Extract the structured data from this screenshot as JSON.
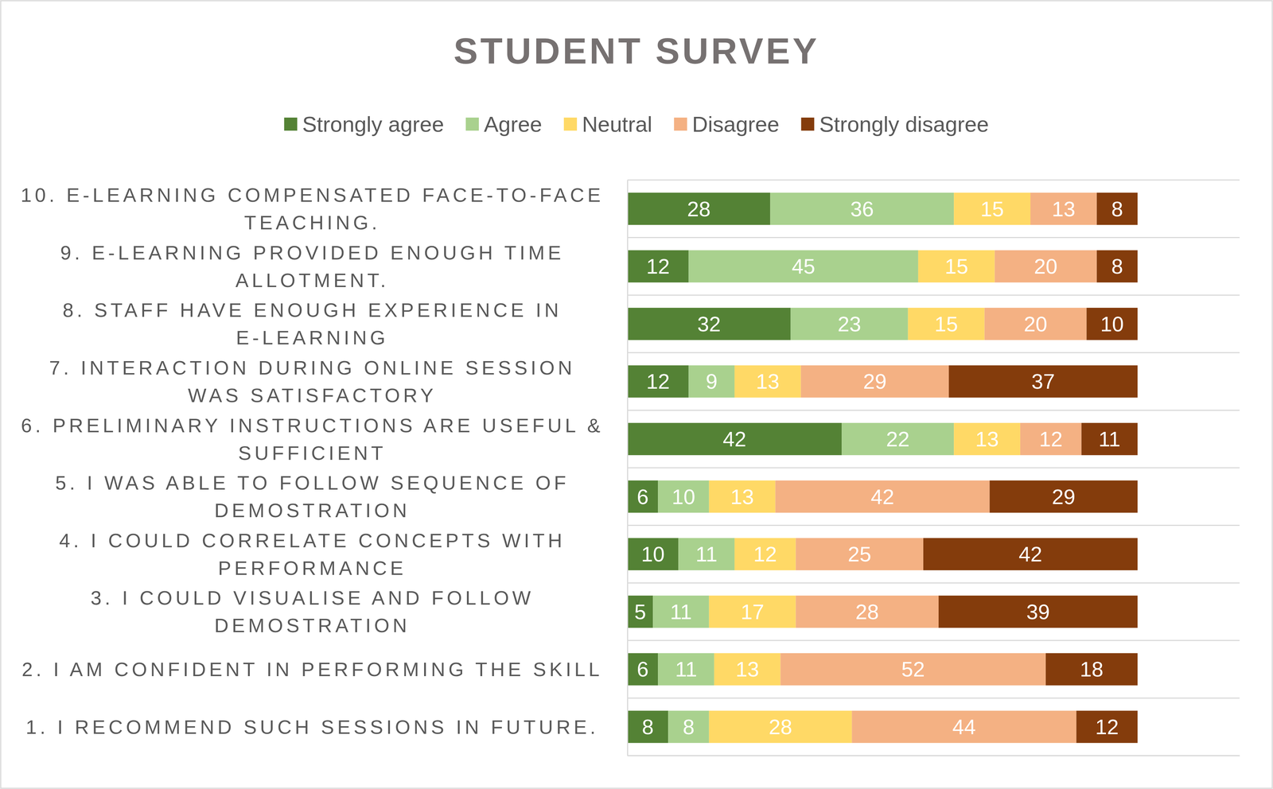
{
  "chart_data": {
    "type": "bar",
    "title": "STUDENT SURVEY",
    "orientation": "horizontal",
    "stacked": true,
    "data_labels": true,
    "grid": true,
    "legend": "top",
    "tick_labels": "y",
    "categories": [
      "10. E-LEARNING COMPENSATED FACE-TO-FACE TEACHING.",
      "9. E-LEARNING PROVIDED ENOUGH TIME ALLOTMENT.",
      "8. STAFF HAVE ENOUGH EXPERIENCE IN E-LEARNING",
      "7. INTERACTION DURING ONLINE SESSION WAS SATISFACTORY",
      "6. PRELIMINARY INSTRUCTIONS ARE USEFUL & SUFFICIENT",
      "5. I WAS ABLE TO FOLLOW SEQUENCE OF DEMOSTRATION",
      "4. I COULD CORRELATE CONCEPTS WITH PERFORMANCE",
      "3. I COULD VISUALISE AND FOLLOW DEMOSTRATION",
      "2. I AM CONFIDENT IN PERFORMING THE SKILL",
      "1. I RECOMMEND SUCH SESSIONS IN FUTURE."
    ],
    "xlim": [
      0,
      120
    ],
    "series": [
      {
        "name": "Strongly agree",
        "color": "#548235",
        "values": [
          28,
          12,
          32,
          12,
          42,
          6,
          10,
          5,
          6,
          8
        ]
      },
      {
        "name": "Agree",
        "color": "#A9D18E",
        "values": [
          36,
          45,
          23,
          9,
          22,
          10,
          11,
          11,
          11,
          8
        ]
      },
      {
        "name": "Neutral",
        "color": "#FFD966",
        "values": [
          15,
          15,
          15,
          13,
          13,
          13,
          12,
          17,
          13,
          28
        ]
      },
      {
        "name": "Disagree",
        "color": "#F4B183",
        "values": [
          13,
          20,
          20,
          29,
          12,
          42,
          25,
          28,
          52,
          44
        ]
      },
      {
        "name": "Strongly disagree",
        "color": "#843C0C",
        "values": [
          8,
          8,
          10,
          37,
          11,
          29,
          42,
          39,
          18,
          12
        ]
      }
    ]
  }
}
